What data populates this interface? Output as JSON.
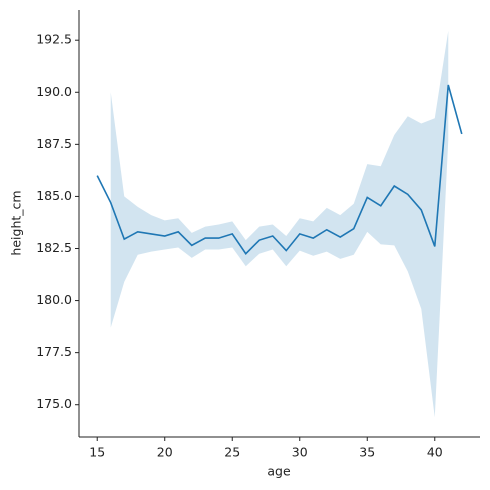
{
  "chart_data": {
    "type": "line",
    "x_label": "age",
    "y_label": "height_cm",
    "x": [
      15,
      16,
      17,
      18,
      19,
      20,
      21,
      22,
      23,
      24,
      25,
      26,
      27,
      28,
      29,
      30,
      31,
      32,
      33,
      34,
      35,
      36,
      37,
      38,
      39,
      40,
      41,
      42
    ],
    "series": [
      {
        "color": "#1f77b4",
        "values": [
          186.0,
          184.7,
          182.95,
          183.3,
          183.2,
          183.1,
          183.3,
          182.65,
          183.0,
          183.0,
          183.2,
          182.25,
          182.9,
          183.1,
          182.4,
          183.2,
          183.0,
          183.4,
          183.05,
          183.45,
          184.95,
          184.55,
          185.5,
          185.1,
          184.35,
          182.6,
          190.35,
          188.0
        ],
        "ci_upper": [
          null,
          190.0,
          185.0,
          184.5,
          184.1,
          183.85,
          183.95,
          183.25,
          183.55,
          183.65,
          183.8,
          182.9,
          183.55,
          183.65,
          183.1,
          183.95,
          183.8,
          184.45,
          184.1,
          184.65,
          186.55,
          186.45,
          187.95,
          188.85,
          188.5,
          188.75,
          192.95,
          null
        ],
        "ci_lower": [
          null,
          178.7,
          180.9,
          182.2,
          182.35,
          182.45,
          182.55,
          182.05,
          182.45,
          182.45,
          182.55,
          181.65,
          182.25,
          182.45,
          181.65,
          182.4,
          182.15,
          182.35,
          182.0,
          182.2,
          183.3,
          182.7,
          182.65,
          181.4,
          179.6,
          174.4,
          187.7,
          null
        ]
      }
    ],
    "xlim": [
      13.65,
      43.35
    ],
    "ylim": [
      173.45,
      193.95
    ],
    "xticks": [
      15,
      20,
      25,
      30,
      35,
      40
    ],
    "yticks": [
      {
        "value": 175,
        "label": "175.0"
      },
      {
        "value": 177.5,
        "label": "177.5"
      },
      {
        "value": 180,
        "label": "180.0"
      },
      {
        "value": 182.5,
        "label": "182.5"
      },
      {
        "value": 185,
        "label": "185.0"
      },
      {
        "value": 187.5,
        "label": "187.5"
      },
      {
        "value": 190,
        "label": "190.0"
      },
      {
        "value": 192.5,
        "label": "192.5"
      }
    ]
  }
}
